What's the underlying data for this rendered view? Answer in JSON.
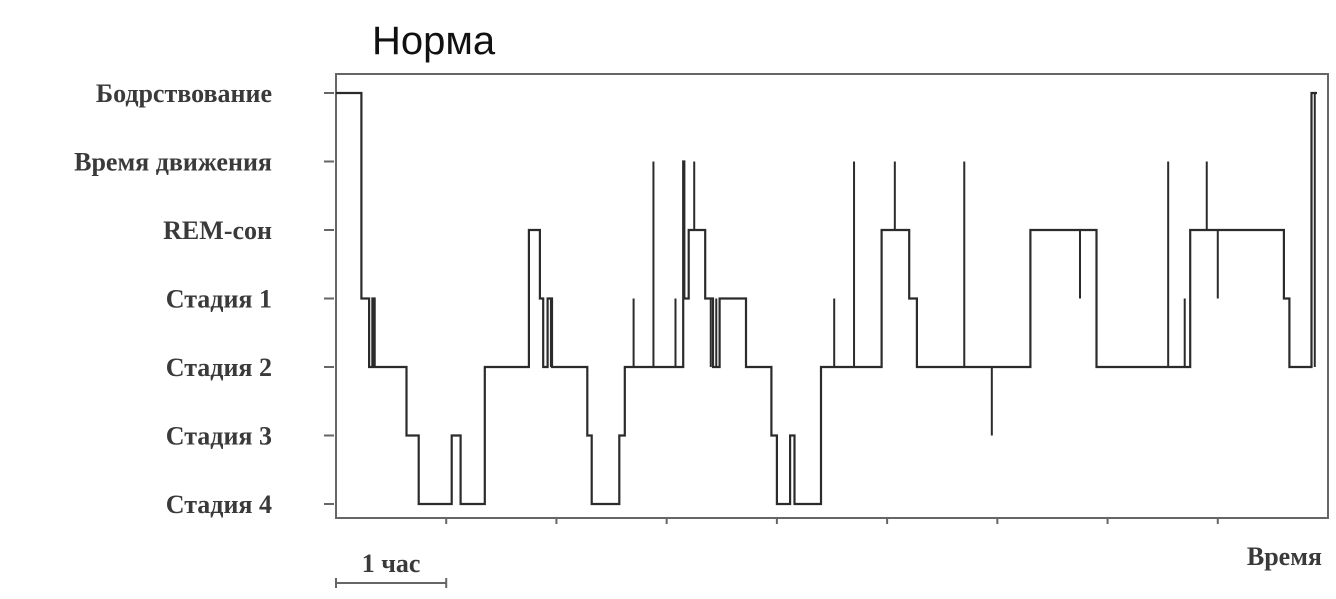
{
  "chart_data": {
    "type": "line",
    "title": "Норма",
    "xlabel": "Время",
    "scale_bar_label": "1 час",
    "y_categories": [
      "Стадия 4",
      "Стадия 3",
      "Стадия 2",
      "Стадия 1",
      "REM-сон",
      "Время движения",
      "Бодрствование"
    ],
    "xlim": [
      0,
      9
    ],
    "x_major_ticks": [
      1,
      2,
      3,
      4,
      5,
      6,
      7,
      8
    ],
    "series": [
      {
        "step_points": [
          [
            0.0,
            "Бодрствование"
          ],
          [
            0.23,
            "Бодрствование"
          ],
          [
            0.23,
            "Стадия 1"
          ],
          [
            0.3,
            "Стадия 1"
          ],
          [
            0.3,
            "Стадия 2"
          ],
          [
            0.33,
            "Стадия 2"
          ],
          [
            0.33,
            "Стадия 1"
          ],
          [
            0.35,
            "Стадия 1"
          ],
          [
            0.35,
            "Стадия 2"
          ],
          [
            0.64,
            "Стадия 2"
          ],
          [
            0.64,
            "Стадия 3"
          ],
          [
            0.75,
            "Стадия 3"
          ],
          [
            0.75,
            "Стадия 4"
          ],
          [
            1.05,
            "Стадия 4"
          ],
          [
            1.05,
            "Стадия 3"
          ],
          [
            1.13,
            "Стадия 3"
          ],
          [
            1.13,
            "Стадия 4"
          ],
          [
            1.35,
            "Стадия 4"
          ],
          [
            1.35,
            "Стадия 2"
          ],
          [
            1.75,
            "Стадия 2"
          ],
          [
            1.75,
            "REM-сон"
          ],
          [
            1.85,
            "REM-сон"
          ],
          [
            1.85,
            "Стадия 1"
          ],
          [
            1.88,
            "Стадия 1"
          ],
          [
            1.88,
            "Стадия 2"
          ],
          [
            1.92,
            "Стадия 2"
          ],
          [
            1.92,
            "Стадия 1"
          ],
          [
            1.96,
            "Стадия 1"
          ],
          [
            1.96,
            "Стадия 2"
          ],
          [
            2.28,
            "Стадия 2"
          ],
          [
            2.28,
            "Стадия 3"
          ],
          [
            2.32,
            "Стадия 3"
          ],
          [
            2.32,
            "Стадия 4"
          ],
          [
            2.57,
            "Стадия 4"
          ],
          [
            2.57,
            "Стадия 3"
          ],
          [
            2.62,
            "Стадия 3"
          ],
          [
            2.62,
            "Стадия 2"
          ],
          [
            3.15,
            "Стадия 2"
          ],
          [
            3.15,
            "Время движения"
          ],
          [
            3.16,
            "Время движения"
          ],
          [
            3.16,
            "Стадия 1"
          ],
          [
            3.2,
            "Стадия 1"
          ],
          [
            3.2,
            "REM-сон"
          ],
          [
            3.35,
            "REM-сон"
          ],
          [
            3.35,
            "Стадия 1"
          ],
          [
            3.42,
            "Стадия 1"
          ],
          [
            3.42,
            "Стадия 2"
          ],
          [
            3.48,
            "Стадия 2"
          ],
          [
            3.48,
            "Стадия 1"
          ],
          [
            3.72,
            "Стадия 1"
          ],
          [
            3.72,
            "Стадия 2"
          ],
          [
            3.95,
            "Стадия 2"
          ],
          [
            3.95,
            "Стадия 3"
          ],
          [
            4.0,
            "Стадия 3"
          ],
          [
            4.0,
            "Стадия 4"
          ],
          [
            4.12,
            "Стадия 4"
          ],
          [
            4.12,
            "Стадия 3"
          ],
          [
            4.16,
            "Стадия 3"
          ],
          [
            4.16,
            "Стадия 4"
          ],
          [
            4.4,
            "Стадия 4"
          ],
          [
            4.4,
            "Стадия 2"
          ],
          [
            4.95,
            "Стадия 2"
          ],
          [
            4.95,
            "REM-сон"
          ],
          [
            5.2,
            "REM-сон"
          ],
          [
            5.2,
            "Стадия 1"
          ],
          [
            5.27,
            "Стадия 1"
          ],
          [
            5.27,
            "Стадия 2"
          ],
          [
            6.3,
            "Стадия 2"
          ],
          [
            6.3,
            "REM-сон"
          ],
          [
            6.9,
            "REM-сон"
          ],
          [
            6.9,
            "Стадия 2"
          ],
          [
            7.75,
            "Стадия 2"
          ],
          [
            7.75,
            "REM-сон"
          ],
          [
            7.9,
            "REM-сон"
          ],
          [
            7.9,
            "REM-сон"
          ],
          [
            8.6,
            "REM-сон"
          ],
          [
            8.6,
            "Стадия 1"
          ],
          [
            8.65,
            "Стадия 1"
          ],
          [
            8.65,
            "Стадия 2"
          ],
          [
            8.85,
            "Стадия 2"
          ],
          [
            8.85,
            "Бодрствование"
          ],
          [
            8.9,
            "Бодрствование"
          ]
        ],
        "spikes": [
          [
            0.35,
            "Стадия 2",
            "Стадия 1"
          ],
          [
            1.95,
            "Стадия 2",
            "Стадия 1"
          ],
          [
            2.7,
            "Стадия 2",
            "Стадия 1"
          ],
          [
            2.88,
            "Стадия 2",
            "Время движения"
          ],
          [
            3.08,
            "Стадия 2",
            "Стадия 1"
          ],
          [
            3.25,
            "REM-сон",
            "Время движения"
          ],
          [
            3.4,
            "Стадия 2",
            "Стадия 1"
          ],
          [
            3.45,
            "Стадия 2",
            "Стадия 1"
          ],
          [
            4.52,
            "Стадия 2",
            "Стадия 1"
          ],
          [
            4.7,
            "Стадия 2",
            "Время движения"
          ],
          [
            5.07,
            "REM-сон",
            "Время движения"
          ],
          [
            5.7,
            "Стадия 2",
            "Время движения"
          ],
          [
            5.95,
            "Стадия 2",
            "Стадия 3"
          ],
          [
            6.75,
            "REM-сон",
            "Стадия 1"
          ],
          [
            7.55,
            "Стадия 2",
            "Время движения"
          ],
          [
            7.7,
            "Стадия 2",
            "Стадия 1"
          ],
          [
            7.9,
            "REM-сон",
            "Время движения"
          ],
          [
            8.0,
            "REM-сон",
            "Стадия 1"
          ],
          [
            8.88,
            "Стадия 2",
            "Бодрствование"
          ]
        ]
      }
    ]
  },
  "colors": {
    "line": "#2b2b2b",
    "axis": "#666666",
    "text": "#3a3a3a"
  }
}
